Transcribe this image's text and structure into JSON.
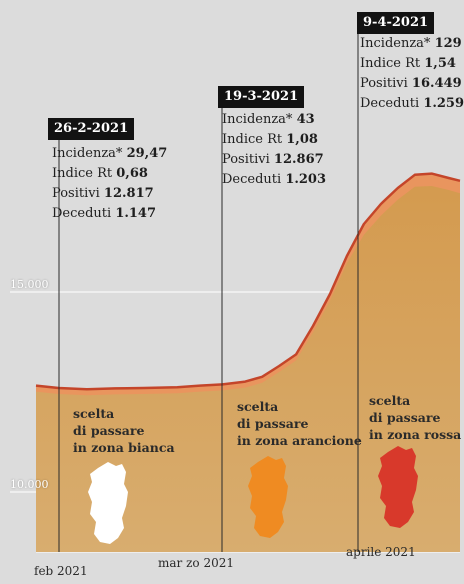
{
  "chart_data": {
    "type": "area",
    "title": "",
    "xlabel": "",
    "ylabel": "",
    "x_ticks": [
      "feb 2021",
      "mar zo 2021",
      "aprile 2021"
    ],
    "y_ticks": [
      "15.000",
      "10.000"
    ],
    "series": [
      {
        "x": [
          "2021-02-01",
          "2021-02-05",
          "2021-02-10",
          "2021-02-15",
          "2021-02-20",
          "2021-02-26",
          "2021-03-02",
          "2021-03-06",
          "2021-03-10",
          "2021-03-13",
          "2021-03-16",
          "2021-03-19",
          "2021-03-22",
          "2021-03-25",
          "2021-03-28",
          "2021-03-31",
          "2021-04-03",
          "2021-04-06",
          "2021-04-09",
          "2021-04-12",
          "2021-04-15",
          "2021-04-17"
        ],
        "values": [
          12660,
          12600,
          12570,
          12590,
          12600,
          12620,
          12660,
          12690,
          12760,
          12880,
          13150,
          13440,
          14150,
          14950,
          15900,
          16700,
          17200,
          17600,
          17930,
          17960,
          17850,
          17780
        ]
      }
    ],
    "lower_band": {
      "values": [
        12510,
        12450,
        12420,
        12440,
        12450,
        12470,
        12510,
        12540,
        12610,
        12730,
        13000,
        13290,
        13990,
        14780,
        15720,
        16430,
        16910,
        17310,
        17630,
        17650,
        17550,
        17470
      ]
    },
    "annotations": [
      {
        "date": "26-2-2021",
        "rows": [
          {
            "label": "Incidenza*",
            "value": "29,47"
          },
          {
            "label": "Indice Rt",
            "value": "0,68"
          },
          {
            "label": "Positivi",
            "value": "12.817"
          },
          {
            "label": "Deceduti",
            "value": "1.147"
          }
        ]
      },
      {
        "date": "19-3-2021",
        "rows": [
          {
            "label": "Incidenza*",
            "value": "43"
          },
          {
            "label": "Indice Rt",
            "value": "1,08"
          },
          {
            "label": "Positivi",
            "value": "12.867"
          },
          {
            "label": "Deceduti",
            "value": "1.203"
          }
        ]
      },
      {
        "date": "9-4-2021",
        "rows": [
          {
            "label": "Incidenza*",
            "value": "129"
          },
          {
            "label": "Indice Rt",
            "value": "1,54"
          },
          {
            "label": "Positivi",
            "value": "16.449"
          },
          {
            "label": "Deceduti",
            "value": "1.259"
          }
        ]
      }
    ],
    "zones": [
      {
        "lines": [
          "scelta",
          "di passare",
          "in zona bianca"
        ],
        "color": "#ffffff"
      },
      {
        "lines": [
          "scelta",
          "di passare",
          "in zona arancione"
        ],
        "color": "#ef8b22"
      },
      {
        "lines": [
          "scelta",
          "di passare",
          "in zona rossa"
        ],
        "color": "#d8392b"
      }
    ],
    "colors": {
      "background": "#dcdcdc",
      "area": "#d9a65e",
      "line": "#c4452a",
      "band": "#e9955e"
    },
    "grid": false
  }
}
